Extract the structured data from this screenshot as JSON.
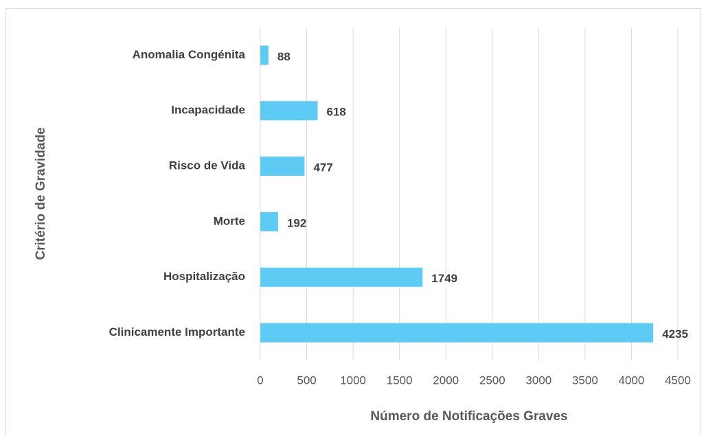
{
  "chart_data": {
    "type": "bar",
    "orientation": "horizontal",
    "x_label": "Número de Notificações Graves",
    "y_label": "Critério de Gravidade",
    "categories": [
      "Anomalia Congénita",
      "Incapacidade",
      "Risco de Vida",
      "Morte",
      "Hospitalização",
      "Clinicamente Importante"
    ],
    "values": [
      88,
      618,
      477,
      192,
      1749,
      4235
    ],
    "color": "#5ecbf5",
    "xlim": [
      0,
      4500
    ],
    "xticks": [
      0,
      500,
      1000,
      1500,
      2000,
      2500,
      3000,
      3500,
      4000,
      4500
    ],
    "grid": true
  }
}
